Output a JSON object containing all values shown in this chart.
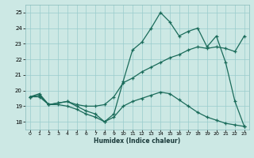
{
  "title": "",
  "xlabel": "Humidex (Indice chaleur)",
  "ylabel": "",
  "bg_color": "#cce8e4",
  "grid_color": "#99cccc",
  "line_color": "#1a6b5a",
  "xlim": [
    -0.5,
    23.5
  ],
  "ylim": [
    17.5,
    25.5
  ],
  "xticks": [
    0,
    1,
    2,
    3,
    4,
    5,
    6,
    7,
    8,
    9,
    10,
    11,
    12,
    13,
    14,
    15,
    16,
    17,
    18,
    19,
    20,
    21,
    22,
    23
  ],
  "yticks": [
    18,
    19,
    20,
    21,
    22,
    23,
    24,
    25
  ],
  "series1_x": [
    0,
    1,
    2,
    3,
    4,
    5,
    6,
    7,
    8,
    9,
    10,
    11,
    12,
    13,
    14,
    15,
    16,
    17,
    18,
    19,
    20,
    21,
    22,
    23
  ],
  "series1_y": [
    19.6,
    19.8,
    19.1,
    19.2,
    19.3,
    19.0,
    18.7,
    18.5,
    18.0,
    18.5,
    20.6,
    22.6,
    23.1,
    24.0,
    25.0,
    24.4,
    23.5,
    23.8,
    24.0,
    22.8,
    23.5,
    21.8,
    19.3,
    17.7
  ],
  "series2_x": [
    0,
    1,
    2,
    3,
    4,
    5,
    6,
    7,
    8,
    9,
    10,
    11,
    12,
    13,
    14,
    15,
    16,
    17,
    18,
    19,
    20,
    21,
    22,
    23
  ],
  "series2_y": [
    19.6,
    19.7,
    19.1,
    19.2,
    19.3,
    19.1,
    19.0,
    19.0,
    19.1,
    19.6,
    20.5,
    20.8,
    21.2,
    21.5,
    21.8,
    22.1,
    22.3,
    22.6,
    22.8,
    22.7,
    22.8,
    22.7,
    22.5,
    23.5
  ],
  "series3_x": [
    0,
    1,
    2,
    3,
    4,
    5,
    6,
    7,
    8,
    9,
    10,
    11,
    12,
    13,
    14,
    15,
    16,
    17,
    18,
    19,
    20,
    21,
    22,
    23
  ],
  "series3_y": [
    19.6,
    19.6,
    19.1,
    19.1,
    19.0,
    18.8,
    18.5,
    18.3,
    18.0,
    18.3,
    19.0,
    19.3,
    19.5,
    19.7,
    19.9,
    19.8,
    19.4,
    19.0,
    18.6,
    18.3,
    18.1,
    17.9,
    17.8,
    17.7
  ]
}
